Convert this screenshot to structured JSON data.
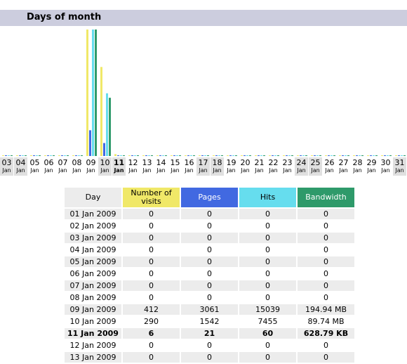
{
  "section": {
    "title": "Days of month"
  },
  "colors": {
    "visits": "#f0e868",
    "pages": "#4169e1",
    "hits": "#66ddee",
    "bandwidth": "#2e9a6a",
    "header_bg": "#cccdde",
    "weekend_bg": "#e0e0e0"
  },
  "chart_data": {
    "type": "bar",
    "categories": [
      "03",
      "04",
      "05",
      "06",
      "07",
      "08",
      "09",
      "10",
      "11",
      "12",
      "13",
      "14",
      "15",
      "16",
      "17",
      "18",
      "19",
      "20",
      "21",
      "22",
      "23",
      "24",
      "25",
      "26",
      "27",
      "28",
      "29",
      "30",
      "31"
    ],
    "month_label": "Jan",
    "weekend_days": [
      "03",
      "04",
      "10",
      "11",
      "17",
      "18",
      "24",
      "25",
      "31"
    ],
    "current_day": "11",
    "series": [
      {
        "name": "Number of visits",
        "values": [
          0,
          0,
          0,
          0,
          0,
          0,
          412,
          290,
          6,
          0,
          0,
          0,
          0,
          0,
          0,
          0,
          0,
          0,
          0,
          0,
          0,
          0,
          0,
          0,
          0,
          0,
          0,
          0,
          0
        ]
      },
      {
        "name": "Pages",
        "values": [
          0,
          0,
          0,
          0,
          0,
          0,
          3061,
          1542,
          21,
          0,
          0,
          0,
          0,
          0,
          0,
          0,
          0,
          0,
          0,
          0,
          0,
          0,
          0,
          0,
          0,
          0,
          0,
          0,
          0
        ]
      },
      {
        "name": "Hits",
        "values": [
          0,
          0,
          0,
          0,
          0,
          0,
          15039,
          7455,
          60,
          0,
          0,
          0,
          0,
          0,
          0,
          0,
          0,
          0,
          0,
          0,
          0,
          0,
          0,
          0,
          0,
          0,
          0,
          0,
          0
        ]
      },
      {
        "name": "Bandwidth",
        "values": [
          0,
          0,
          0,
          0,
          0,
          0,
          194.94,
          89.74,
          0.614,
          0,
          0,
          0,
          0,
          0,
          0,
          0,
          0,
          0,
          0,
          0,
          0,
          0,
          0,
          0,
          0,
          0,
          0,
          0,
          0
        ]
      }
    ]
  },
  "table": {
    "headers": {
      "day": "Day",
      "visits": "Number of visits",
      "pages": "Pages",
      "hits": "Hits",
      "bandwidth": "Bandwidth"
    },
    "rows": [
      {
        "day": "01 Jan 2009",
        "visits": "0",
        "pages": "0",
        "hits": "0",
        "bandwidth": "0"
      },
      {
        "day": "02 Jan 2009",
        "visits": "0",
        "pages": "0",
        "hits": "0",
        "bandwidth": "0"
      },
      {
        "day": "03 Jan 2009",
        "visits": "0",
        "pages": "0",
        "hits": "0",
        "bandwidth": "0"
      },
      {
        "day": "04 Jan 2009",
        "visits": "0",
        "pages": "0",
        "hits": "0",
        "bandwidth": "0"
      },
      {
        "day": "05 Jan 2009",
        "visits": "0",
        "pages": "0",
        "hits": "0",
        "bandwidth": "0"
      },
      {
        "day": "06 Jan 2009",
        "visits": "0",
        "pages": "0",
        "hits": "0",
        "bandwidth": "0"
      },
      {
        "day": "07 Jan 2009",
        "visits": "0",
        "pages": "0",
        "hits": "0",
        "bandwidth": "0"
      },
      {
        "day": "08 Jan 2009",
        "visits": "0",
        "pages": "0",
        "hits": "0",
        "bandwidth": "0"
      },
      {
        "day": "09 Jan 2009",
        "visits": "412",
        "pages": "3061",
        "hits": "15039",
        "bandwidth": "194.94 MB"
      },
      {
        "day": "10 Jan 2009",
        "visits": "290",
        "pages": "1542",
        "hits": "7455",
        "bandwidth": "89.74 MB"
      },
      {
        "day": "11 Jan 2009",
        "visits": "6",
        "pages": "21",
        "hits": "60",
        "bandwidth": "628.79 KB",
        "current": true
      },
      {
        "day": "12 Jan 2009",
        "visits": "0",
        "pages": "0",
        "hits": "0",
        "bandwidth": "0"
      },
      {
        "day": "13 Jan 2009",
        "visits": "0",
        "pages": "0",
        "hits": "0",
        "bandwidth": "0"
      }
    ]
  }
}
